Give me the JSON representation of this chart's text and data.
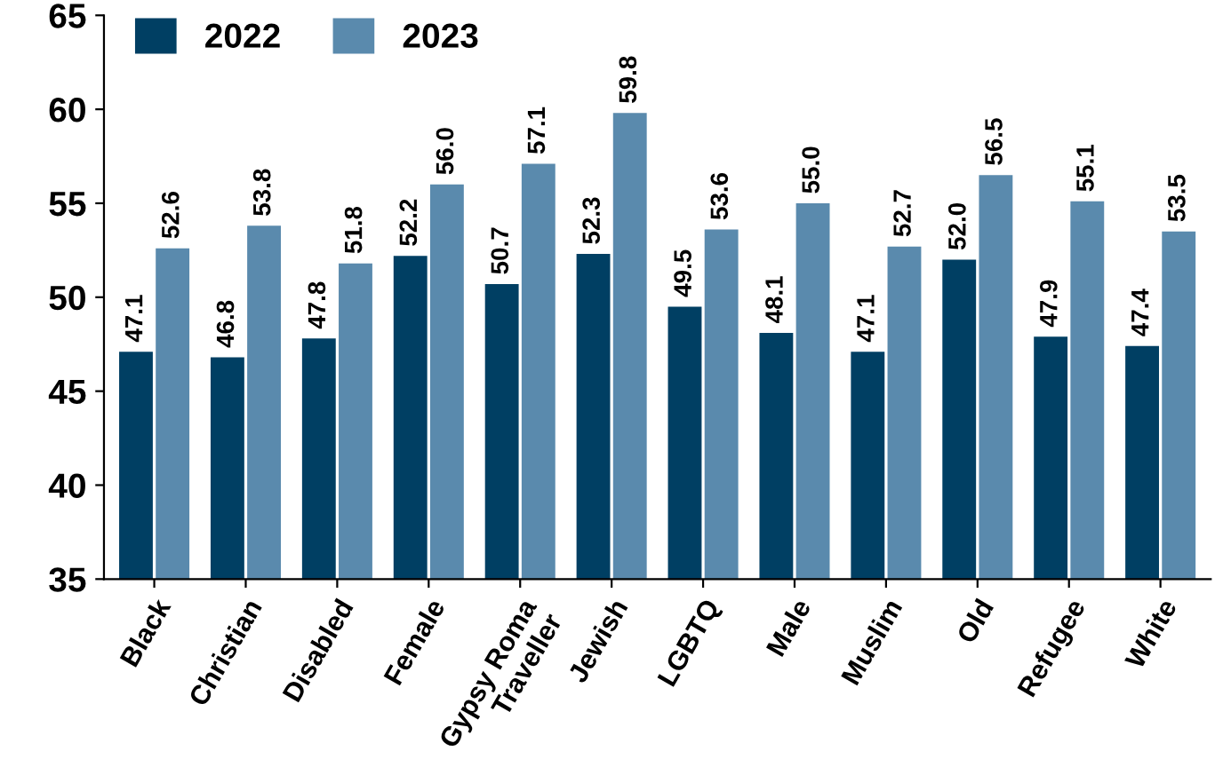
{
  "chart_data": {
    "type": "bar",
    "categories": [
      "Black",
      "Christian",
      "Disabled",
      "Female",
      "Gypsy Roma\nTraveller",
      "Jewish",
      "LGBTQ",
      "Male",
      "Muslim",
      "Old",
      "Refugee",
      "White"
    ],
    "series": [
      {
        "name": "2022",
        "color": "#003f63",
        "values": [
          47.1,
          46.8,
          47.8,
          52.2,
          50.7,
          52.3,
          49.5,
          48.1,
          47.1,
          52.0,
          47.9,
          47.4
        ],
        "value_labels": [
          "47.1",
          "46.8",
          "47.8",
          "52.2",
          "50.7",
          "52.3",
          "49.5",
          "48.1",
          "47.1",
          "52.0",
          "47.9",
          "47.4"
        ]
      },
      {
        "name": "2023",
        "color": "#5a8aad",
        "values": [
          52.6,
          53.8,
          51.8,
          56.0,
          57.1,
          59.8,
          53.6,
          55.0,
          52.7,
          56.5,
          55.1,
          53.5
        ],
        "value_labels": [
          "52.6",
          "53.8",
          "51.8",
          "56.0",
          "57.1",
          "59.8",
          "53.6",
          "55.0",
          "52.7",
          "56.5",
          "55.1",
          "53.5"
        ]
      }
    ],
    "ylim": [
      35,
      65
    ],
    "yticks": [
      35,
      40,
      45,
      50,
      55,
      60,
      65
    ],
    "grid": false,
    "legend": "top left"
  }
}
